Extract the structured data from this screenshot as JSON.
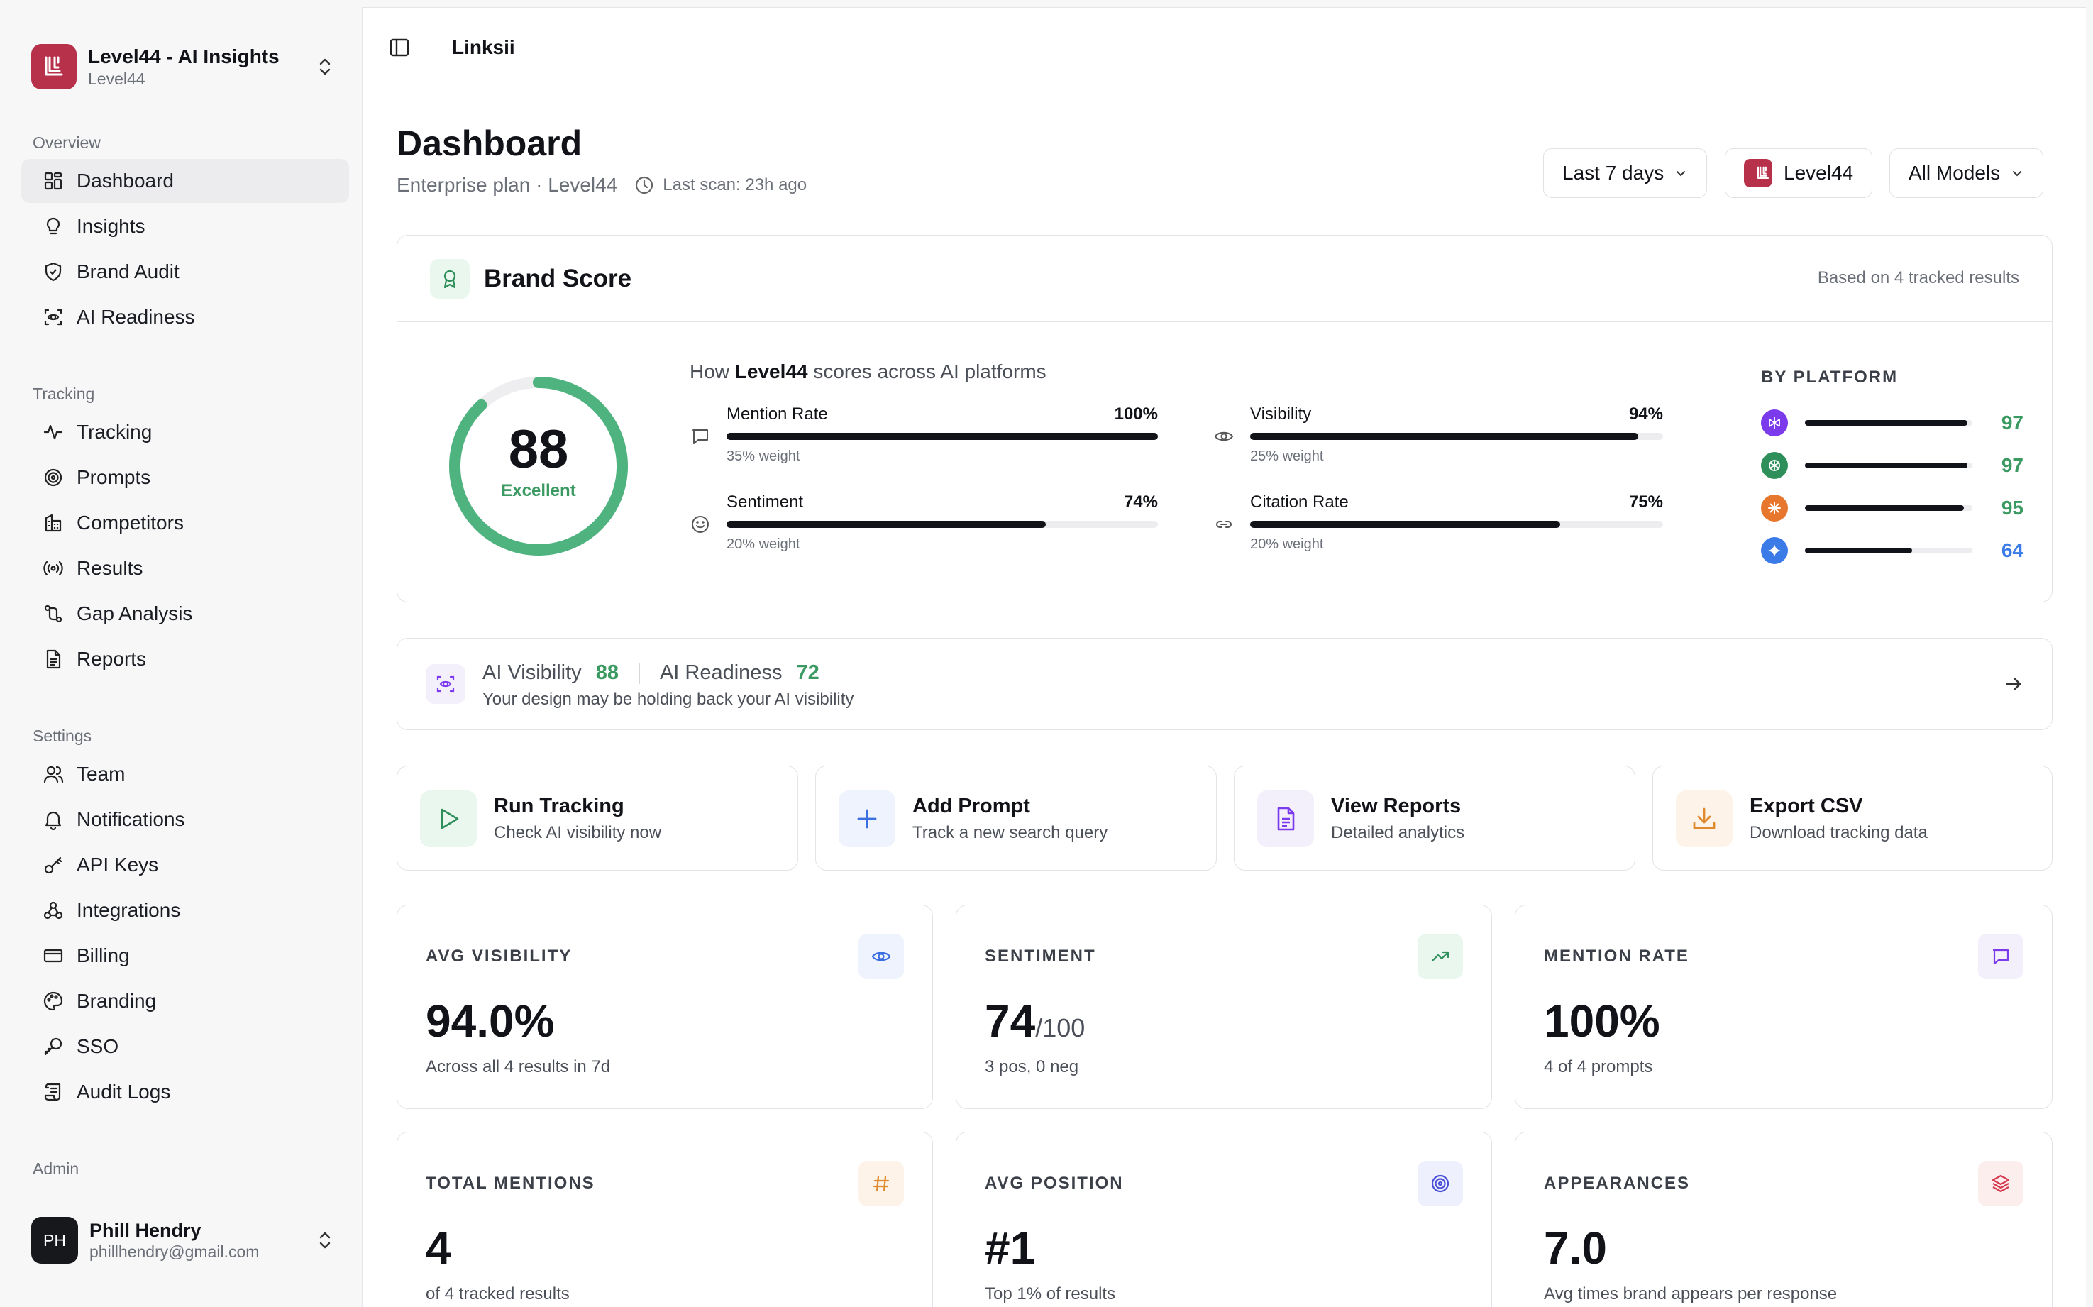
{
  "sidebar": {
    "org_title": "Level44 - AI Insights",
    "org_sub": "Level44",
    "groups": {
      "overview": "Overview",
      "tracking": "Tracking",
      "settings": "Settings",
      "admin": "Admin"
    },
    "items": {
      "dashboard": "Dashboard",
      "insights": "Insights",
      "brand_audit": "Brand Audit",
      "ai_readiness": "AI Readiness",
      "tracking": "Tracking",
      "prompts": "Prompts",
      "competitors": "Competitors",
      "results": "Results",
      "gap_analysis": "Gap Analysis",
      "reports": "Reports",
      "team": "Team",
      "notifications": "Notifications",
      "api_keys": "API Keys",
      "integrations": "Integrations",
      "billing": "Billing",
      "branding": "Branding",
      "sso": "SSO",
      "audit_logs": "Audit Logs"
    },
    "user": {
      "initials": "PH",
      "name": "Phill Hendry",
      "email": "phillhendry@gmail.com"
    }
  },
  "topbar": {
    "breadcrumb": "Linksii"
  },
  "header": {
    "title": "Dashboard",
    "subtitle": "Enterprise plan · Level44",
    "last_scan": "Last scan: 23h ago",
    "filters": {
      "range": "Last 7 days",
      "brand": "Level44",
      "models": "All Models"
    }
  },
  "brand_score": {
    "title": "Brand Score",
    "note": "Based on 4 tracked results",
    "score": "88",
    "score_value": 88,
    "rating": "Excellent",
    "how_prefix": "How ",
    "how_brand": "Level44",
    "how_suffix": " scores across AI platforms",
    "metrics": [
      {
        "name": "Mention Rate",
        "pct": "100%",
        "value": 100,
        "weight": "35% weight"
      },
      {
        "name": "Visibility",
        "pct": "94%",
        "value": 94,
        "weight": "25% weight"
      },
      {
        "name": "Sentiment",
        "pct": "74%",
        "value": 74,
        "weight": "20% weight"
      },
      {
        "name": "Citation Rate",
        "pct": "75%",
        "value": 75,
        "weight": "20% weight"
      }
    ],
    "by_platform_label": "BY PLATFORM",
    "platforms": [
      {
        "icon": "perplexity-icon",
        "color": "#7c3aed",
        "score": "97",
        "value": 97
      },
      {
        "icon": "openai-icon",
        "color": "#2f8f5b",
        "score": "97",
        "value": 97
      },
      {
        "icon": "claude-icon",
        "color": "#e8772e",
        "score": "95",
        "value": 95
      },
      {
        "icon": "gemini-icon",
        "color": "#3b7be8",
        "score": "64",
        "value": 64
      }
    ]
  },
  "visibility_strip": {
    "ai_visibility_label": "AI Visibility",
    "ai_visibility_value": "88",
    "ai_readiness_label": "AI Readiness",
    "ai_readiness_value": "72",
    "message": "Your design may be holding back your AI visibility"
  },
  "actions": [
    {
      "title": "Run Tracking",
      "sub": "Check AI visibility now"
    },
    {
      "title": "Add Prompt",
      "sub": "Track a new search query"
    },
    {
      "title": "View Reports",
      "sub": "Detailed analytics"
    },
    {
      "title": "Export CSV",
      "sub": "Download tracking data"
    }
  ],
  "stats": [
    {
      "label": "AVG VISIBILITY",
      "value": "94.0%",
      "unit": "",
      "sub": "Across all 4 results in 7d"
    },
    {
      "label": "SENTIMENT",
      "value": "74",
      "unit": "/100",
      "sub": "3 pos, 0 neg"
    },
    {
      "label": "MENTION RATE",
      "value": "100%",
      "unit": "",
      "sub": "4 of 4 prompts"
    },
    {
      "label": "TOTAL MENTIONS",
      "value": "4",
      "unit": "",
      "sub": "of 4 tracked results"
    },
    {
      "label": "AVG POSITION",
      "value": "#1",
      "unit": "",
      "sub": "Top 1% of results"
    },
    {
      "label": "APPEARANCES",
      "value": "7.0",
      "unit": "",
      "sub": "Avg times brand appears per response"
    }
  ],
  "colors": {
    "accent_green": "#3a9a62",
    "brand_red": "#b7314b"
  }
}
